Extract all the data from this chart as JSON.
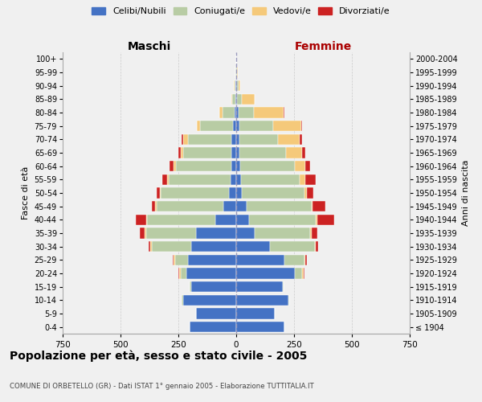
{
  "age_groups": [
    "100+",
    "95-99",
    "90-94",
    "85-89",
    "80-84",
    "75-79",
    "70-74",
    "65-69",
    "60-64",
    "55-59",
    "50-54",
    "45-49",
    "40-44",
    "35-39",
    "30-34",
    "25-29",
    "20-24",
    "15-19",
    "10-14",
    "5-9",
    "0-4"
  ],
  "birth_years": [
    "≤ 1904",
    "1905-1909",
    "1910-1914",
    "1915-1919",
    "1920-1924",
    "1925-1929",
    "1930-1934",
    "1935-1939",
    "1940-1944",
    "1945-1949",
    "1950-1954",
    "1955-1959",
    "1960-1964",
    "1965-1969",
    "1970-1974",
    "1975-1979",
    "1980-1984",
    "1985-1989",
    "1990-1994",
    "1995-1999",
    "2000-2004"
  ],
  "maschi": {
    "celibi": [
      0,
      1,
      2,
      5,
      8,
      15,
      20,
      20,
      22,
      25,
      30,
      55,
      90,
      175,
      195,
      210,
      215,
      195,
      230,
      175,
      200
    ],
    "coniugati": [
      0,
      2,
      5,
      12,
      50,
      140,
      190,
      210,
      240,
      265,
      295,
      290,
      295,
      215,
      170,
      55,
      25,
      5,
      5,
      0,
      0
    ],
    "vedovi": [
      0,
      0,
      2,
      5,
      15,
      15,
      20,
      10,
      10,
      10,
      5,
      5,
      5,
      5,
      5,
      5,
      5,
      0,
      0,
      0,
      0
    ],
    "divorziati": [
      0,
      0,
      0,
      0,
      0,
      0,
      5,
      10,
      15,
      20,
      15,
      15,
      45,
      20,
      10,
      5,
      5,
      0,
      0,
      0,
      0
    ]
  },
  "femmine": {
    "nubili": [
      0,
      1,
      3,
      5,
      10,
      15,
      15,
      15,
      18,
      20,
      25,
      45,
      55,
      80,
      145,
      210,
      255,
      200,
      225,
      165,
      210
    ],
    "coniugate": [
      0,
      3,
      8,
      20,
      65,
      145,
      165,
      200,
      235,
      255,
      270,
      280,
      290,
      240,
      195,
      85,
      30,
      5,
      5,
      0,
      0
    ],
    "vedove": [
      0,
      2,
      8,
      55,
      130,
      120,
      95,
      70,
      45,
      25,
      10,
      5,
      5,
      5,
      5,
      5,
      5,
      0,
      0,
      0,
      0
    ],
    "divorziate": [
      0,
      0,
      0,
      0,
      5,
      5,
      10,
      15,
      20,
      45,
      30,
      55,
      75,
      25,
      10,
      5,
      5,
      0,
      0,
      0,
      0
    ]
  },
  "colors": {
    "celibi": "#4472c4",
    "coniugati": "#b8cca4",
    "vedovi": "#f5c97a",
    "divorziati": "#cc2222"
  },
  "xlim": 750,
  "title": "Popolazione per età, sesso e stato civile - 2005",
  "subtitle": "COMUNE DI ORBETELLO (GR) - Dati ISTAT 1° gennaio 2005 - Elaborazione TUTTITALIA.IT",
  "legend_labels": [
    "Celibi/Nubili",
    "Coniugati/e",
    "Vedovi/e",
    "Divorziati/e"
  ],
  "ylabel_left": "Fasce di età",
  "ylabel_right": "Anni di nascita",
  "xlabel_left": "Maschi",
  "xlabel_right": "Femmine",
  "bg_color": "#f0f0f0"
}
